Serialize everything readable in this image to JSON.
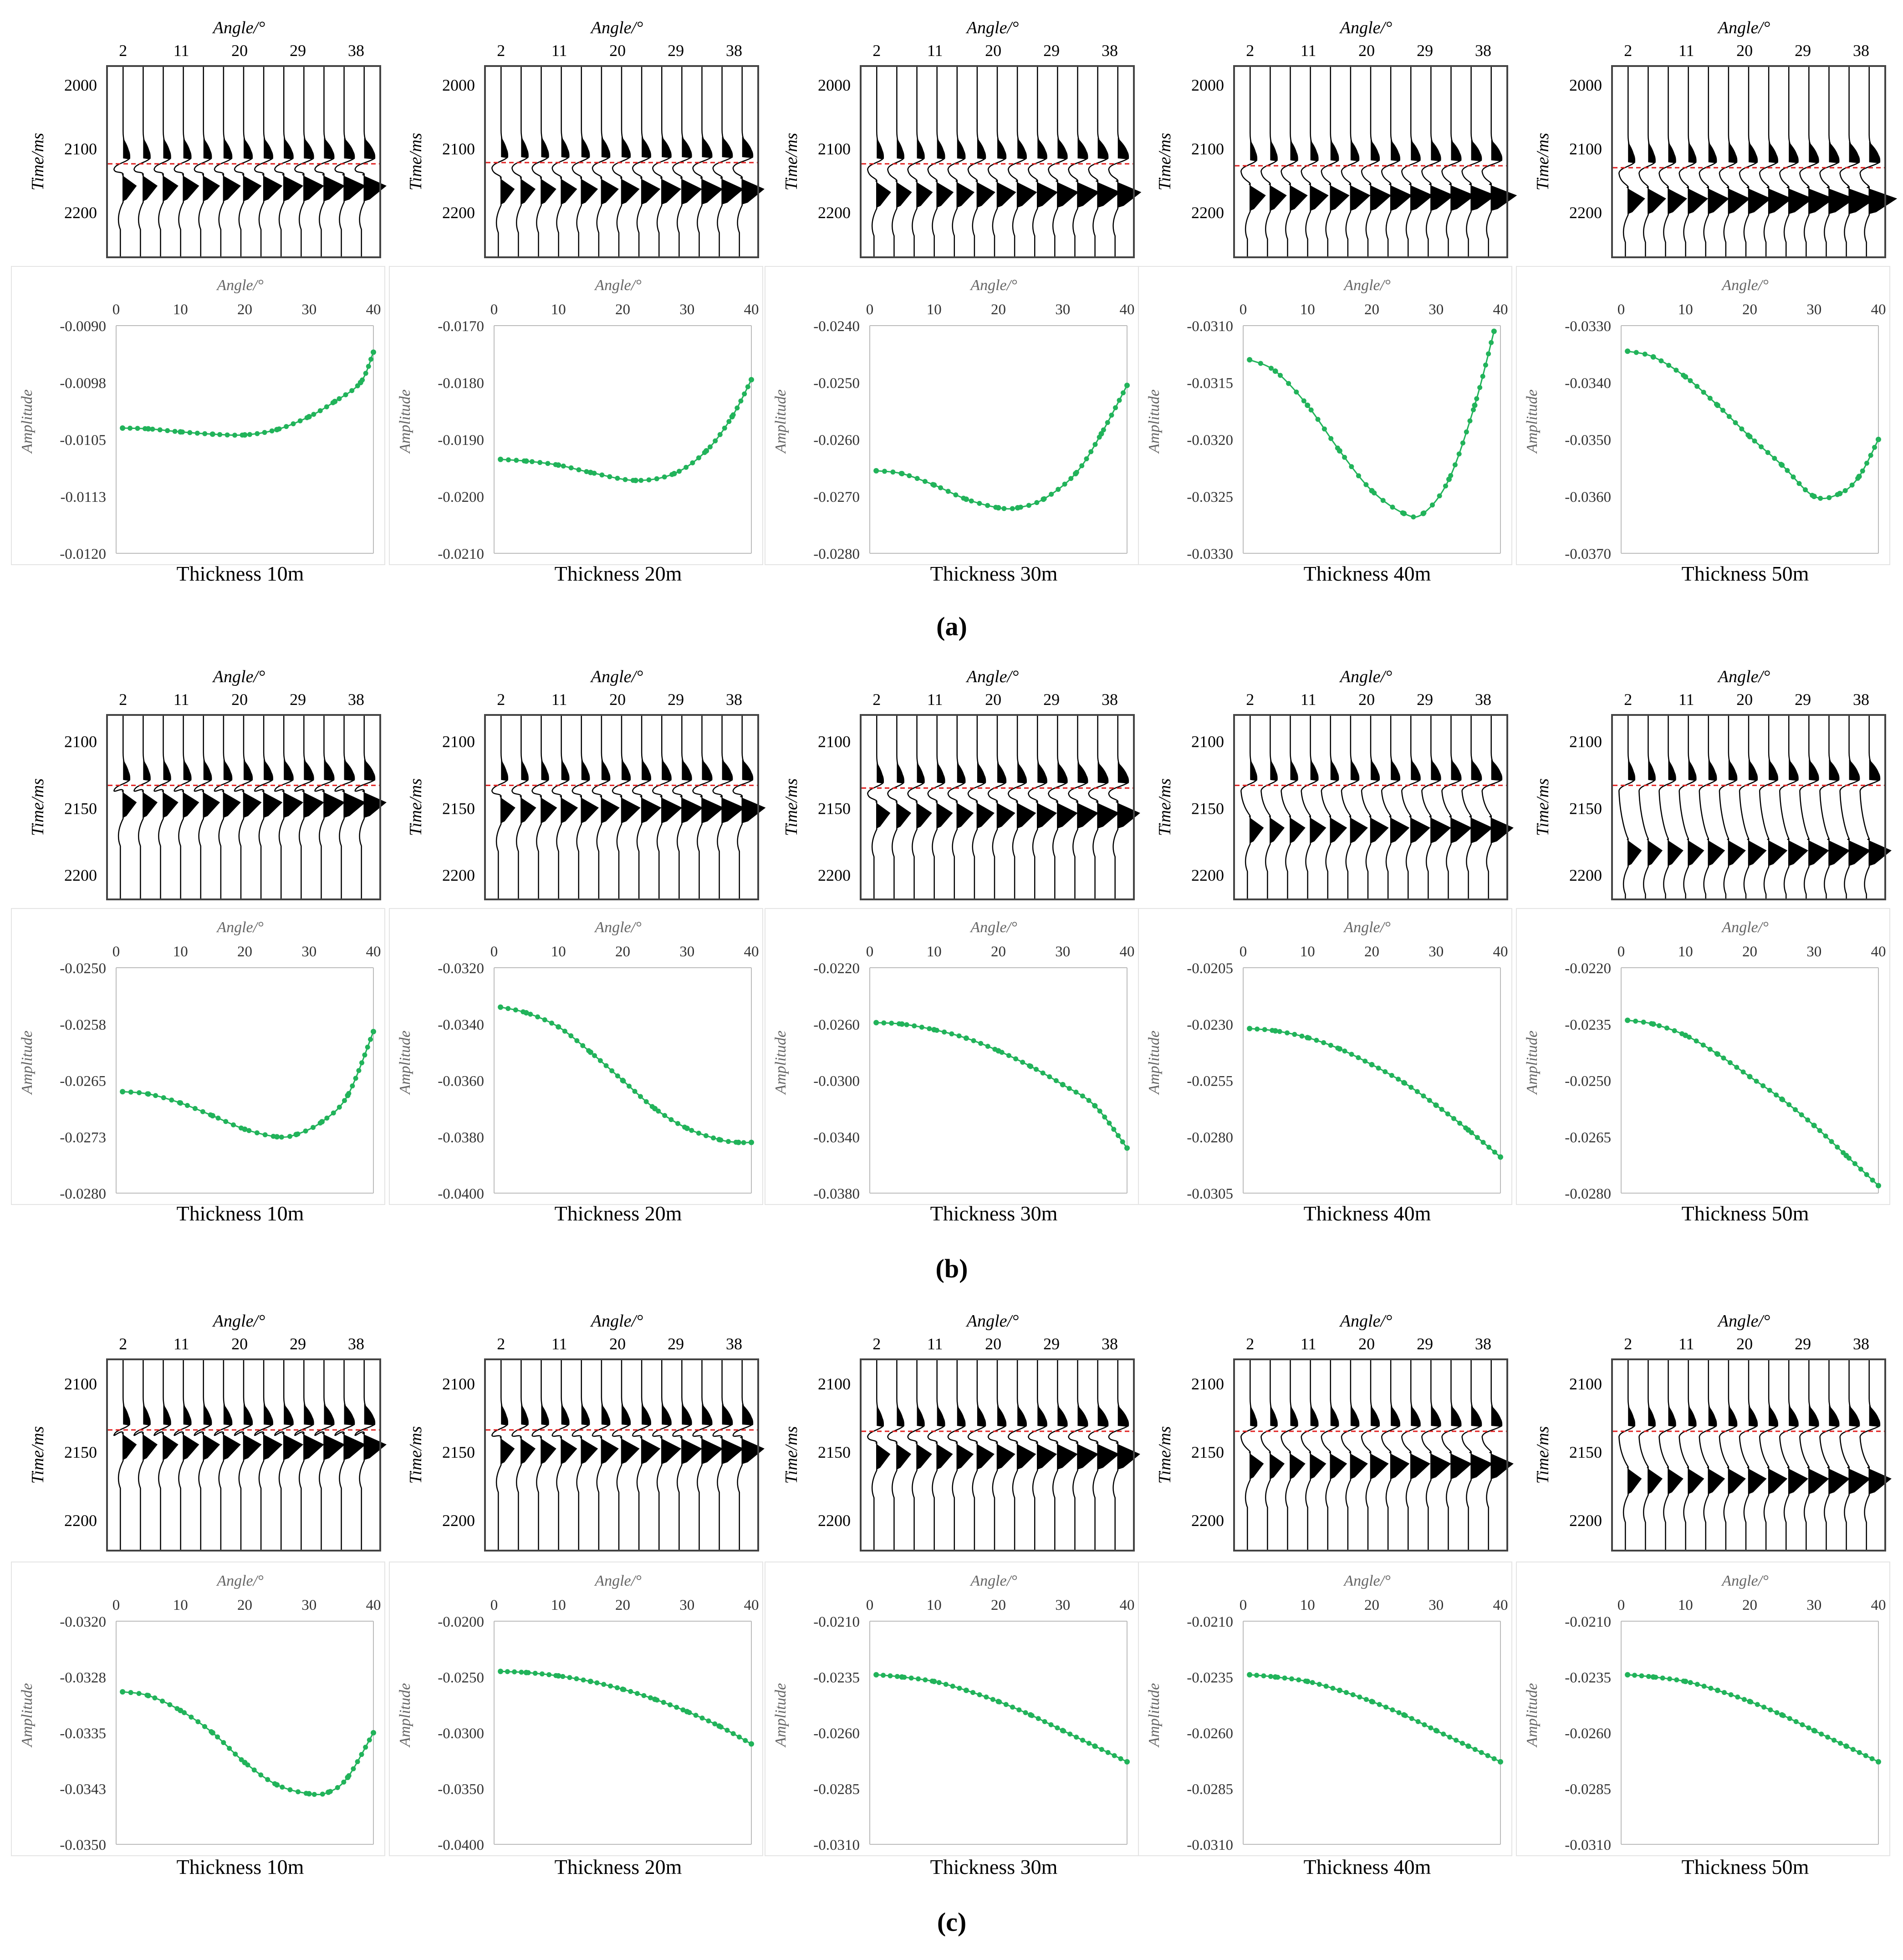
{
  "figure": {
    "section_labels": [
      "(a)",
      "(b)",
      "(c)"
    ],
    "colors": {
      "curve": "#21b35a",
      "dashed": "#e02020",
      "axis": "#555555",
      "grid": "#d0d0d0",
      "wiggle": "#000000",
      "frame": "#444444"
    },
    "gather_axis_title": "Angle/°",
    "gather_ylabel": "Time/ms",
    "curve_axis_title": "Angle/°",
    "curve_ylabel": "Amplitude"
  },
  "chart_data": [
    {
      "section": "(a)",
      "gathers": {
        "type": "wiggle",
        "angle_ticks": [
          "2",
          "11",
          "20",
          "29",
          "38"
        ],
        "time_ticks": [
          [
            "2000",
            "2100",
            "2200"
          ],
          [
            "2000",
            "2100",
            "2200"
          ],
          [
            "2000",
            "2100",
            "2200"
          ],
          [
            "2000",
            "2100",
            "2200"
          ],
          [
            "2000",
            "2100",
            "2200"
          ]
        ],
        "time_range": [
          1970,
          2270
        ]
      },
      "curves": [
        {
          "type": "line",
          "title": "Thickness 10m",
          "xlabel": "Angle/°",
          "ylabel": "Amplitude",
          "xlim": [
            0,
            40
          ],
          "x_ticks": [
            "0",
            "10",
            "20",
            "30",
            "40"
          ],
          "ylim": [
            -0.012,
            -0.009
          ],
          "y_ticks": [
            "-0.0090",
            "-0.0098",
            "-0.0105",
            "-0.0113",
            "-0.0120"
          ],
          "x": [
            1,
            5,
            10,
            15,
            20,
            25,
            30,
            34,
            38,
            40
          ],
          "y": [
            -0.01035,
            -0.01036,
            -0.0104,
            -0.01043,
            -0.01044,
            -0.01037,
            -0.0102,
            -0.01,
            -0.00975,
            -0.00935
          ]
        },
        {
          "type": "line",
          "title": "Thickness 20m",
          "xlabel": "Angle/°",
          "ylabel": "Amplitude",
          "xlim": [
            0,
            40
          ],
          "x_ticks": [
            "0",
            "10",
            "20",
            "30",
            "40"
          ],
          "ylim": [
            -0.021,
            -0.017
          ],
          "y_ticks": [
            "-0.0170",
            "-0.0180",
            "-0.0190",
            "-0.0200",
            "-0.0210"
          ],
          "x": [
            1,
            5,
            10,
            15,
            22,
            28,
            33,
            37,
            40
          ],
          "y": [
            -0.01935,
            -0.01938,
            -0.01945,
            -0.01958,
            -0.01972,
            -0.0196,
            -0.0192,
            -0.0186,
            -0.01795
          ]
        },
        {
          "type": "line",
          "title": "Thickness 30m",
          "xlabel": "Angle/°",
          "ylabel": "Amplitude",
          "xlim": [
            0,
            40
          ],
          "x_ticks": [
            "0",
            "10",
            "20",
            "30",
            "40"
          ],
          "ylim": [
            -0.028,
            -0.024
          ],
          "y_ticks": [
            "-0.0240",
            "-0.0250",
            "-0.0260",
            "-0.0270",
            "-0.0280"
          ],
          "x": [
            1,
            5,
            10,
            15,
            20,
            23,
            27,
            32,
            36,
            40
          ],
          "y": [
            -0.02655,
            -0.0266,
            -0.0268,
            -0.02705,
            -0.0272,
            -0.0272,
            -0.02705,
            -0.0266,
            -0.0259,
            -0.02505
          ]
        },
        {
          "type": "line",
          "title": "Thickness 40m",
          "xlabel": "Angle/°",
          "ylabel": "Amplitude",
          "xlim": [
            0,
            40
          ],
          "x_ticks": [
            "0",
            "10",
            "20",
            "30",
            "40"
          ],
          "ylim": [
            -0.033,
            -0.031
          ],
          "y_ticks": [
            "-0.0310",
            "-0.0315",
            "-0.0320",
            "-0.0325",
            "-0.0330"
          ],
          "x": [
            1,
            5,
            10,
            15,
            20,
            25,
            28,
            32,
            36,
            39
          ],
          "y": [
            -0.0313,
            -0.0314,
            -0.0317,
            -0.0321,
            -0.03245,
            -0.03265,
            -0.03265,
            -0.03235,
            -0.0317,
            -0.03105
          ]
        },
        {
          "type": "line",
          "title": "Thickness 50m",
          "xlabel": "Angle/°",
          "ylabel": "Amplitude",
          "xlim": [
            0,
            40
          ],
          "x_ticks": [
            "0",
            "10",
            "20",
            "30",
            "40"
          ],
          "ylim": [
            -0.037,
            -0.033
          ],
          "y_ticks": [
            "-0.0330",
            "-0.0340",
            "-0.0350",
            "-0.0360",
            "-0.0370"
          ],
          "x": [
            1,
            5,
            10,
            15,
            20,
            25,
            30,
            34,
            37,
            40
          ],
          "y": [
            -0.03345,
            -0.03355,
            -0.0339,
            -0.0344,
            -0.03495,
            -0.03545,
            -0.036,
            -0.03595,
            -0.03565,
            -0.035
          ]
        }
      ]
    },
    {
      "section": "(b)",
      "gathers": {
        "type": "wiggle",
        "angle_ticks": [
          "2",
          "11",
          "20",
          "29",
          "38"
        ],
        "time_ticks": [
          [
            "2100",
            "2150",
            "2200"
          ],
          [
            "2100",
            "2150",
            "2200"
          ],
          [
            "2100",
            "2150",
            "2200"
          ],
          [
            "2100",
            "2150",
            "2200"
          ],
          [
            "2100",
            "2150",
            "2200"
          ]
        ],
        "time_range": [
          2080,
          2218
        ]
      },
      "curves": [
        {
          "type": "line",
          "title": "Thickness 10m",
          "xlabel": "Angle/°",
          "ylabel": "Amplitude",
          "xlim": [
            0,
            40
          ],
          "x_ticks": [
            "0",
            "10",
            "20",
            "30",
            "40"
          ],
          "ylim": [
            -0.028,
            -0.025
          ],
          "y_ticks": [
            "-0.0250",
            "-0.0258",
            "-0.0265",
            "-0.0273",
            "-0.0280"
          ],
          "x": [
            1,
            5,
            10,
            15,
            20,
            25,
            28,
            32,
            36,
            40
          ],
          "y": [
            -0.02665,
            -0.02668,
            -0.0268,
            -0.02697,
            -0.02715,
            -0.02725,
            -0.02722,
            -0.02705,
            -0.0267,
            -0.02585
          ]
        },
        {
          "type": "line",
          "title": "Thickness 20m",
          "xlabel": "Angle/°",
          "ylabel": "Amplitude",
          "xlim": [
            0,
            40
          ],
          "x_ticks": [
            "0",
            "10",
            "20",
            "30",
            "40"
          ],
          "ylim": [
            -0.04,
            -0.032
          ],
          "y_ticks": [
            "-0.0320",
            "-0.0340",
            "-0.0360",
            "-0.0380",
            "-0.0400"
          ],
          "x": [
            1,
            5,
            10,
            15,
            20,
            25,
            30,
            35,
            38,
            40
          ],
          "y": [
            -0.0334,
            -0.0336,
            -0.0341,
            -0.035,
            -0.036,
            -0.037,
            -0.0377,
            -0.0381,
            -0.0382,
            -0.0382
          ]
        },
        {
          "type": "line",
          "title": "Thickness 30m",
          "xlabel": "Angle/°",
          "ylabel": "Amplitude",
          "xlim": [
            0,
            40
          ],
          "x_ticks": [
            "0",
            "10",
            "20",
            "30",
            "40"
          ],
          "ylim": [
            -0.038,
            -0.022
          ],
          "y_ticks": [
            "-0.0220",
            "-0.0260",
            "-0.0300",
            "-0.0340",
            "-0.0380"
          ],
          "x": [
            1,
            5,
            10,
            15,
            20,
            25,
            30,
            35,
            40
          ],
          "y": [
            -0.0259,
            -0.026,
            -0.0264,
            -0.027,
            -0.0279,
            -0.029,
            -0.0303,
            -0.0318,
            -0.0348
          ]
        },
        {
          "type": "line",
          "title": "Thickness 40m",
          "xlabel": "Angle/°",
          "ylabel": "Amplitude",
          "xlim": [
            0,
            40
          ],
          "x_ticks": [
            "0",
            "10",
            "20",
            "30",
            "40"
          ],
          "ylim": [
            -0.0305,
            -0.0205
          ],
          "y_ticks": [
            "-0.0205",
            "-0.0230",
            "-0.0255",
            "-0.0280",
            "-0.0305"
          ],
          "x": [
            1,
            5,
            10,
            15,
            20,
            25,
            30,
            35,
            40
          ],
          "y": [
            -0.0232,
            -0.0233,
            -0.0236,
            -0.0241,
            -0.0248,
            -0.0256,
            -0.0266,
            -0.0277,
            -0.0289
          ]
        },
        {
          "type": "line",
          "title": "Thickness 50m",
          "xlabel": "Angle/°",
          "ylabel": "Amplitude",
          "xlim": [
            0,
            40
          ],
          "x_ticks": [
            "0",
            "10",
            "20",
            "30",
            "40"
          ],
          "ylim": [
            -0.028,
            -0.022
          ],
          "y_ticks": [
            "-0.0220",
            "-0.0235",
            "-0.0250",
            "-0.0265",
            "-0.0280"
          ],
          "x": [
            1,
            5,
            10,
            15,
            20,
            25,
            30,
            35,
            40
          ],
          "y": [
            -0.0234,
            -0.0235,
            -0.0238,
            -0.0243,
            -0.0249,
            -0.0255,
            -0.0262,
            -0.027,
            -0.0278
          ]
        }
      ]
    },
    {
      "section": "(c)",
      "gathers": {
        "type": "wiggle",
        "angle_ticks": [
          "2",
          "11",
          "20",
          "29",
          "38"
        ],
        "time_ticks": [
          [
            "2100",
            "2150",
            "2200"
          ],
          [
            "2100",
            "2150",
            "2200"
          ],
          [
            "2100",
            "2150",
            "2200"
          ],
          [
            "2100",
            "2150",
            "2200"
          ],
          [
            "2100",
            "2150",
            "2200"
          ]
        ],
        "time_range": [
          2082,
          2222
        ]
      },
      "curves": [
        {
          "type": "line",
          "title": "Thickness 10m",
          "xlabel": "Angle/°",
          "ylabel": "Amplitude",
          "xlim": [
            0,
            40
          ],
          "x_ticks": [
            "0",
            "10",
            "20",
            "30",
            "40"
          ],
          "ylim": [
            -0.035,
            -0.032
          ],
          "y_ticks": [
            "-0.0320",
            "-0.0328",
            "-0.0335",
            "-0.0343",
            "-0.0350"
          ],
          "x": [
            1,
            5,
            10,
            15,
            20,
            25,
            30,
            33,
            36,
            40
          ],
          "y": [
            -0.03295,
            -0.033,
            -0.0332,
            -0.0335,
            -0.0339,
            -0.0342,
            -0.03432,
            -0.0343,
            -0.0341,
            -0.0335
          ]
        },
        {
          "type": "line",
          "title": "Thickness 20m",
          "xlabel": "Angle/°",
          "ylabel": "Amplitude",
          "xlim": [
            0,
            40
          ],
          "x_ticks": [
            "0",
            "10",
            "20",
            "30",
            "40"
          ],
          "ylim": [
            -0.04,
            -0.02
          ],
          "y_ticks": [
            "-0.0200",
            "-0.0250",
            "-0.0300",
            "-0.0350",
            "-0.0400"
          ],
          "x": [
            1,
            5,
            10,
            15,
            20,
            25,
            30,
            35,
            40
          ],
          "y": [
            -0.0245,
            -0.0246,
            -0.0249,
            -0.0254,
            -0.0261,
            -0.027,
            -0.0281,
            -0.0294,
            -0.031
          ]
        },
        {
          "type": "line",
          "title": "Thickness 30m",
          "xlabel": "Angle/°",
          "ylabel": "Amplitude",
          "xlim": [
            0,
            40
          ],
          "x_ticks": [
            "0",
            "10",
            "20",
            "30",
            "40"
          ],
          "ylim": [
            -0.031,
            -0.021
          ],
          "y_ticks": [
            "-0.0210",
            "-0.0235",
            "-0.0260",
            "-0.0285",
            "-0.0310"
          ],
          "x": [
            1,
            5,
            10,
            15,
            20,
            25,
            30,
            35,
            40
          ],
          "y": [
            -0.0234,
            -0.0235,
            -0.0237,
            -0.0241,
            -0.0246,
            -0.0252,
            -0.0259,
            -0.0266,
            -0.0273
          ]
        },
        {
          "type": "line",
          "title": "Thickness 40m",
          "xlabel": "Angle/°",
          "ylabel": "Amplitude",
          "xlim": [
            0,
            40
          ],
          "x_ticks": [
            "0",
            "10",
            "20",
            "30",
            "40"
          ],
          "ylim": [
            -0.031,
            -0.021
          ],
          "y_ticks": [
            "-0.0210",
            "-0.0235",
            "-0.0260",
            "-0.0285",
            "-0.0310"
          ],
          "x": [
            1,
            5,
            10,
            15,
            20,
            25,
            30,
            35,
            40
          ],
          "y": [
            -0.0234,
            -0.0235,
            -0.0237,
            -0.0241,
            -0.0246,
            -0.0252,
            -0.0259,
            -0.0266,
            -0.0273
          ]
        },
        {
          "type": "line",
          "title": "Thickness 50m",
          "xlabel": "Angle/°",
          "ylabel": "Amplitude",
          "xlim": [
            0,
            40
          ],
          "x_ticks": [
            "0",
            "10",
            "20",
            "30",
            "40"
          ],
          "ylim": [
            -0.031,
            -0.021
          ],
          "y_ticks": [
            "-0.0210",
            "-0.0235",
            "-0.0260",
            "-0.0285",
            "-0.0310"
          ],
          "x": [
            1,
            5,
            10,
            15,
            20,
            25,
            30,
            35,
            40
          ],
          "y": [
            -0.0234,
            -0.0235,
            -0.0237,
            -0.0241,
            -0.0246,
            -0.0252,
            -0.0259,
            -0.0266,
            -0.0273
          ]
        }
      ]
    }
  ]
}
